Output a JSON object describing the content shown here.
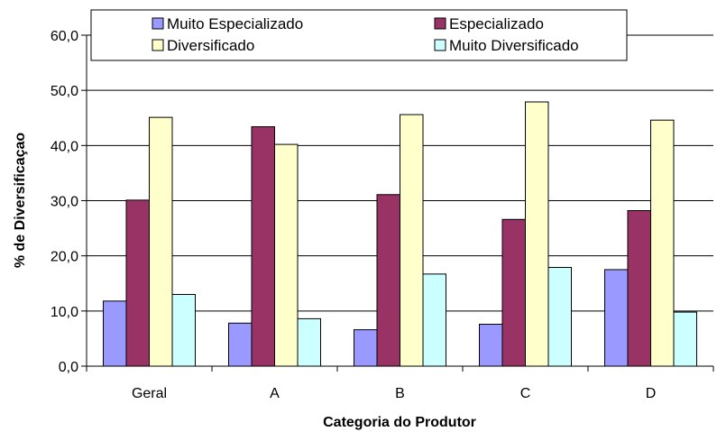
{
  "chart_data": {
    "type": "bar",
    "title": "",
    "xlabel": "Categoria do Produtor",
    "ylabel": "% de Diversificaçao",
    "categories": [
      "Geral",
      "A",
      "B",
      "C",
      "D"
    ],
    "ylim": [
      0,
      60
    ],
    "yticks": [
      "0,0",
      "10,0",
      "20,0",
      "30,0",
      "40,0",
      "50,0",
      "60,0"
    ],
    "grid": true,
    "legend_position": "top",
    "series": [
      {
        "name": "Muito Especializado",
        "color": "#9999ff",
        "values": [
          11.8,
          7.8,
          6.6,
          7.6,
          17.5
        ]
      },
      {
        "name": "Especializado",
        "color": "#993366",
        "values": [
          30.1,
          43.4,
          31.1,
          26.6,
          28.2
        ]
      },
      {
        "name": "Diversificado",
        "color": "#ffffcc",
        "values": [
          45.1,
          40.2,
          45.6,
          47.9,
          44.6
        ]
      },
      {
        "name": "Muito Diversificado",
        "color": "#ccffff",
        "values": [
          13.0,
          8.6,
          16.7,
          17.9,
          9.8
        ]
      }
    ]
  }
}
